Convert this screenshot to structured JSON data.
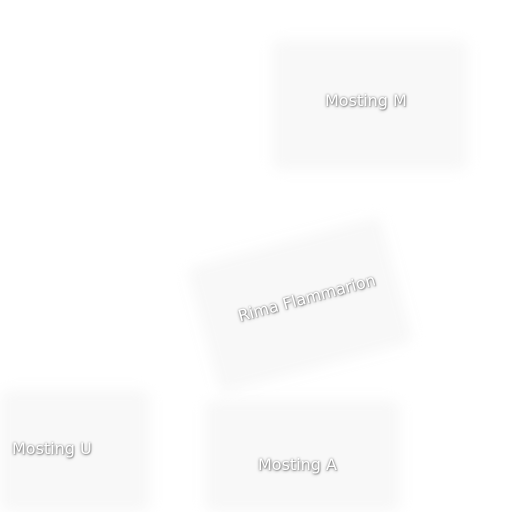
{
  "map": {
    "labels": {
      "mosting_m": "Mosting M",
      "rima_flammarion": "Rima Flammarion",
      "mosting_u": "Mosting U",
      "mosting_a": "Mosting A"
    }
  }
}
